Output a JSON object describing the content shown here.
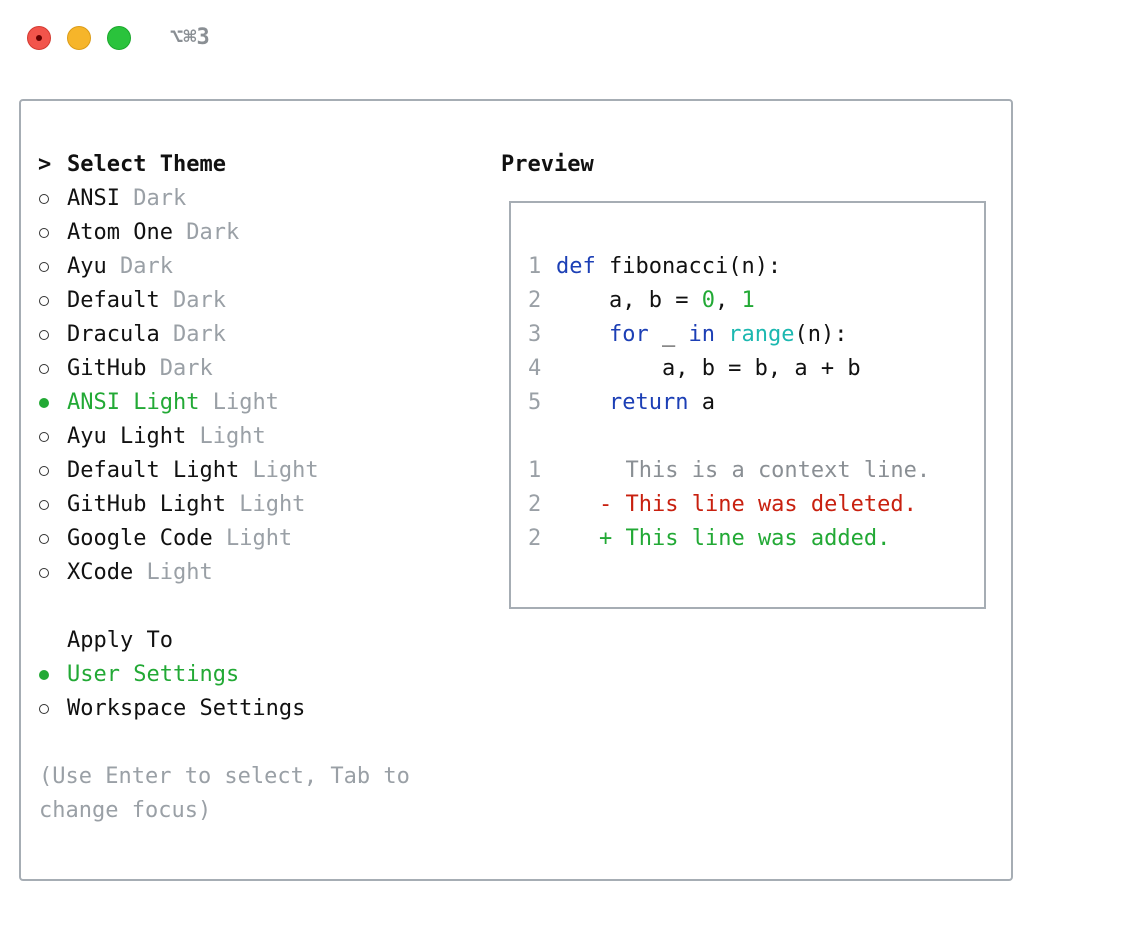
{
  "window": {
    "shortcut": "⌥⌘3"
  },
  "theme_dialog": {
    "cursor": ">",
    "title": "Select Theme",
    "themes": [
      {
        "name": "ANSI",
        "variant": "Dark",
        "selected": false
      },
      {
        "name": "Atom One",
        "variant": "Dark",
        "selected": false
      },
      {
        "name": "Ayu",
        "variant": "Dark",
        "selected": false
      },
      {
        "name": "Default",
        "variant": "Dark",
        "selected": false
      },
      {
        "name": "Dracula",
        "variant": "Dark",
        "selected": false
      },
      {
        "name": "GitHub",
        "variant": "Dark",
        "selected": false
      },
      {
        "name": "ANSI Light",
        "variant": "Light",
        "selected": true
      },
      {
        "name": "Ayu Light",
        "variant": "Light",
        "selected": false
      },
      {
        "name": "Default Light",
        "variant": "Light",
        "selected": false
      },
      {
        "name": "GitHub Light",
        "variant": "Light",
        "selected": false
      },
      {
        "name": "Google Code",
        "variant": "Light",
        "selected": false
      },
      {
        "name": "XCode",
        "variant": "Light",
        "selected": false
      }
    ],
    "apply_title": "Apply To",
    "scopes": [
      {
        "name": "User Settings",
        "selected": true
      },
      {
        "name": "Workspace Settings",
        "selected": false
      }
    ],
    "hint": "(Use Enter to select, Tab to change focus)"
  },
  "preview": {
    "title": "Preview",
    "code": [
      {
        "number": 1,
        "tokens": [
          {
            "text": "def",
            "color": "#1c3fb5"
          },
          {
            "text": " fibonacci(n):",
            "color": "#111111"
          }
        ]
      },
      {
        "number": 2,
        "tokens": [
          {
            "text": "    a, b = ",
            "color": "#111111"
          },
          {
            "text": "0",
            "color": "#22a935"
          },
          {
            "text": ", ",
            "color": "#111111"
          },
          {
            "text": "1",
            "color": "#22a935"
          }
        ]
      },
      {
        "number": 3,
        "tokens": [
          {
            "text": "    for",
            "color": "#1c3fb5"
          },
          {
            "text": " _ ",
            "color": "#111111"
          },
          {
            "text": "in",
            "color": "#1c3fb5"
          },
          {
            "text": " ",
            "color": "#111111"
          },
          {
            "text": "range",
            "color": "#1cb8b0"
          },
          {
            "text": "(n):",
            "color": "#111111"
          }
        ]
      },
      {
        "number": 4,
        "tokens": [
          {
            "text": "        a, b = b, a + b",
            "color": "#111111"
          }
        ]
      },
      {
        "number": 5,
        "tokens": [
          {
            "text": "    return",
            "color": "#1c3fb5"
          },
          {
            "text": " a",
            "color": "#111111"
          }
        ]
      }
    ],
    "diff": [
      {
        "number": 1,
        "text": "  This is a context line.",
        "color": "#8a8f94"
      },
      {
        "number": 2,
        "text": "- This line was deleted.",
        "color": "#c8200f"
      },
      {
        "number": 2,
        "text": "+ This line was added.",
        "color": "#22a935"
      }
    ]
  }
}
